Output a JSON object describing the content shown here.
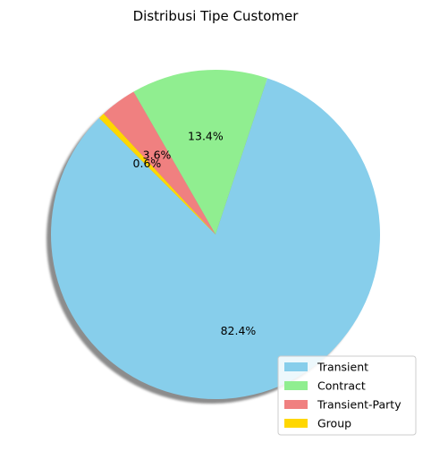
{
  "chart_data": {
    "type": "pie",
    "title": "Distribusi Tipe Customer",
    "shadow": true,
    "start_angle_deg": 135,
    "direction": "counterclockwise",
    "legend_position": "lower-right",
    "series": [
      {
        "name": "Transient",
        "value": 82.4,
        "label": "82.4%",
        "color": "#87CEEB"
      },
      {
        "name": "Contract",
        "value": 13.4,
        "label": "13.4%",
        "color": "#90EE90"
      },
      {
        "name": "Transient-Party",
        "value": 3.6,
        "label": "3.6%",
        "color": "#F08080"
      },
      {
        "name": "Group",
        "value": 0.6,
        "label": "0.6%",
        "color": "#FFD700"
      }
    ]
  }
}
